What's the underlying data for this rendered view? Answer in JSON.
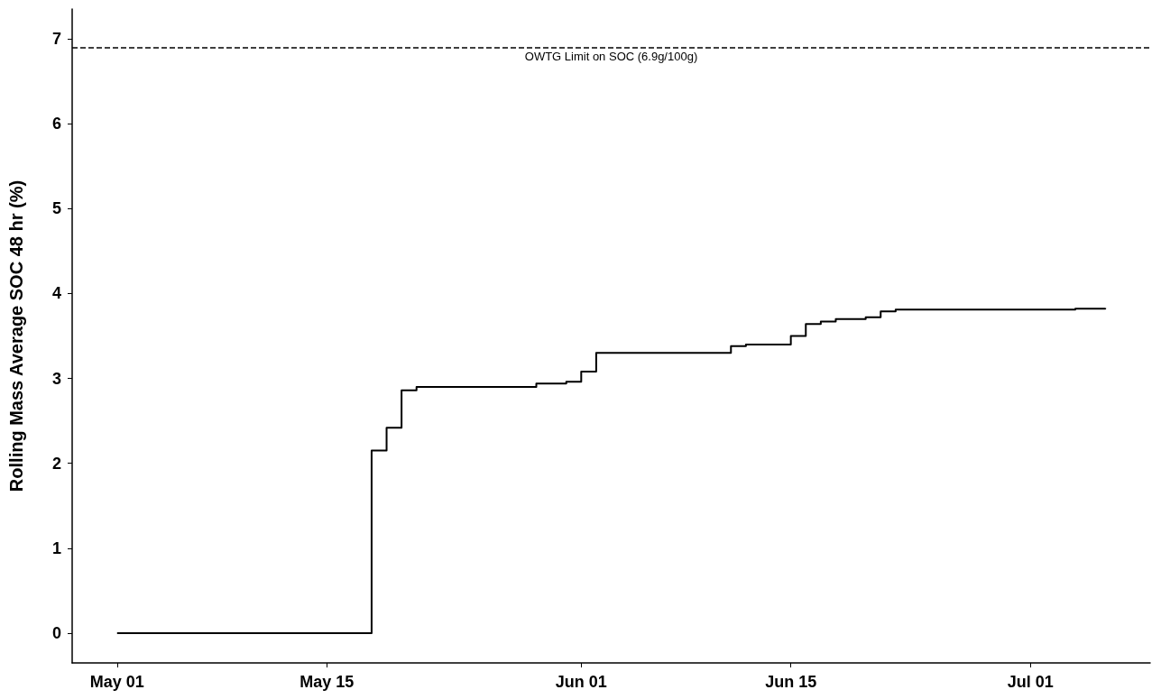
{
  "chart_data": {
    "type": "step",
    "ylabel": "Rolling Mass Average SOC 48 hr (%)",
    "x": [
      "--05-01",
      "--05-18",
      "--05-19",
      "--05-20",
      "--05-21",
      "--05-29",
      "--05-31",
      "--06-01",
      "--06-02",
      "--06-11",
      "--06-12",
      "--06-15",
      "--06-16",
      "--06-17",
      "--06-18",
      "--06-20",
      "--06-21",
      "--06-22",
      "--07-04",
      "--07-06"
    ],
    "series": [
      {
        "color": "#000000",
        "values": [
          0,
          2.15,
          2.42,
          2.86,
          2.9,
          2.94,
          2.96,
          3.08,
          3.3,
          3.38,
          3.4,
          3.5,
          3.64,
          3.67,
          3.7,
          3.72,
          3.79,
          3.81,
          3.82,
          3.83
        ]
      }
    ],
    "xlim": [
      "--04-28",
      "--07-09"
    ],
    "xticks": [
      {
        "value": "--05-01",
        "label": "May 01"
      },
      {
        "value": "--05-15",
        "label": "May 15"
      },
      {
        "value": "--06-01",
        "label": "Jun 01"
      },
      {
        "value": "--06-15",
        "label": "Jun 15"
      },
      {
        "value": "--07-01",
        "label": "Jul 01"
      }
    ],
    "ylim": [
      -0.35,
      7.35
    ],
    "yticks": [
      0,
      1,
      2,
      3,
      4,
      5,
      6,
      7
    ],
    "ref_lines": [
      {
        "axis": "y",
        "value": 6.9,
        "label": "OWTG Limit on SOC (6.9g/100g)",
        "color": "#000000",
        "line_style": "dashed"
      }
    ],
    "grid": false,
    "marker": "none",
    "line_style": "solid"
  }
}
